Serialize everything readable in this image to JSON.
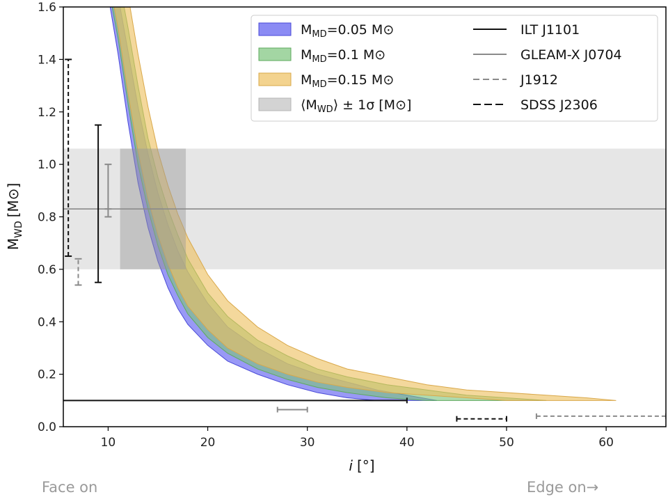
{
  "chart_data": {
    "type": "area",
    "xlabel_italic": "i",
    "xlabel_unit": "[°]",
    "ylabel_main": "M",
    "ylabel_sub": "WD",
    "ylabel_unit_open": "[M",
    "ylabel_unit_sym": "⊙",
    "ylabel_unit_close": "]",
    "xlim": [
      5.5,
      66
    ],
    "ylim": [
      0.0,
      1.6
    ],
    "x_ticks": [
      10,
      20,
      30,
      40,
      50,
      60
    ],
    "x_tick_labels": [
      "10",
      "20",
      "30",
      "40",
      "50",
      "60"
    ],
    "y_ticks": [
      0.0,
      0.2,
      0.4,
      0.6,
      0.8,
      1.0,
      1.2,
      1.4,
      1.6
    ],
    "y_tick_labels": [
      "0.0",
      "0.2",
      "0.4",
      "0.6",
      "0.8",
      "1.0",
      "1.2",
      "1.4",
      "1.6"
    ],
    "caption_left": "Face on",
    "caption_right": "Edge on→",
    "legend_position": "top-right",
    "bands": [
      {
        "label_main": "M",
        "label_sub": "MD",
        "label_value": "=0.05 M",
        "label_sym": "⊙",
        "color": "#5a5af0",
        "edge": "#4a4ad8",
        "lower": [
          [
            10.2,
            1.6
          ],
          [
            11,
            1.42
          ],
          [
            12,
            1.16
          ],
          [
            13,
            0.93
          ],
          [
            14,
            0.76
          ],
          [
            15,
            0.63
          ],
          [
            16,
            0.53
          ],
          [
            17,
            0.45
          ],
          [
            18,
            0.39
          ],
          [
            20,
            0.31
          ],
          [
            22,
            0.25
          ],
          [
            25,
            0.2
          ],
          [
            28,
            0.16
          ],
          [
            31,
            0.13
          ],
          [
            34,
            0.11
          ],
          [
            37,
            0.1
          ],
          [
            40,
            0.1
          ]
        ],
        "upper": [
          [
            11.2,
            1.6
          ],
          [
            12,
            1.43
          ],
          [
            13,
            1.22
          ],
          [
            14,
            1.04
          ],
          [
            15,
            0.89
          ],
          [
            16,
            0.77
          ],
          [
            17,
            0.67
          ],
          [
            18,
            0.59
          ],
          [
            20,
            0.47
          ],
          [
            22,
            0.38
          ],
          [
            25,
            0.3
          ],
          [
            28,
            0.24
          ],
          [
            31,
            0.2
          ],
          [
            34,
            0.17
          ],
          [
            37,
            0.14
          ],
          [
            40,
            0.12
          ],
          [
            43,
            0.1
          ]
        ]
      },
      {
        "label_main": "M",
        "label_sub": "MD",
        "label_value": "=0.1 M",
        "label_sym": "⊙",
        "color": "#7cc47c",
        "edge": "#5eaa5e",
        "lower": [
          [
            10.4,
            1.6
          ],
          [
            11,
            1.48
          ],
          [
            12,
            1.23
          ],
          [
            13,
            1.0
          ],
          [
            14,
            0.83
          ],
          [
            15,
            0.69
          ],
          [
            16,
            0.58
          ],
          [
            17,
            0.5
          ],
          [
            18,
            0.43
          ],
          [
            20,
            0.34
          ],
          [
            22,
            0.28
          ],
          [
            25,
            0.22
          ],
          [
            28,
            0.18
          ],
          [
            31,
            0.15
          ],
          [
            34,
            0.13
          ],
          [
            38,
            0.11
          ],
          [
            42,
            0.1
          ],
          [
            47,
            0.1
          ]
        ],
        "upper": [
          [
            11.6,
            1.6
          ],
          [
            12,
            1.52
          ],
          [
            13,
            1.3
          ],
          [
            14,
            1.1
          ],
          [
            15,
            0.95
          ],
          [
            16,
            0.83
          ],
          [
            17,
            0.73
          ],
          [
            18,
            0.64
          ],
          [
            20,
            0.51
          ],
          [
            22,
            0.42
          ],
          [
            25,
            0.33
          ],
          [
            28,
            0.27
          ],
          [
            31,
            0.22
          ],
          [
            34,
            0.19
          ],
          [
            38,
            0.16
          ],
          [
            42,
            0.14
          ],
          [
            46,
            0.12
          ],
          [
            50,
            0.11
          ],
          [
            54,
            0.1
          ]
        ]
      },
      {
        "label_main": "M",
        "label_sub": "MD",
        "label_value": "=0.15 M",
        "label_sym": "⊙",
        "color": "#eec060",
        "edge": "#d9a84a",
        "lower": [
          [
            10.6,
            1.6
          ],
          [
            11,
            1.52
          ],
          [
            12,
            1.27
          ],
          [
            13,
            1.05
          ],
          [
            14,
            0.87
          ],
          [
            15,
            0.73
          ],
          [
            16,
            0.62
          ],
          [
            17,
            0.53
          ],
          [
            18,
            0.46
          ],
          [
            20,
            0.37
          ],
          [
            22,
            0.3
          ],
          [
            25,
            0.24
          ],
          [
            28,
            0.2
          ],
          [
            31,
            0.17
          ],
          [
            34,
            0.15
          ],
          [
            38,
            0.13
          ],
          [
            42,
            0.12
          ],
          [
            46,
            0.11
          ],
          [
            50,
            0.1
          ],
          [
            54,
            0.1
          ]
        ],
        "upper": [
          [
            12.2,
            1.6
          ],
          [
            13,
            1.42
          ],
          [
            14,
            1.22
          ],
          [
            15,
            1.05
          ],
          [
            16,
            0.92
          ],
          [
            17,
            0.81
          ],
          [
            18,
            0.72
          ],
          [
            20,
            0.58
          ],
          [
            22,
            0.48
          ],
          [
            25,
            0.38
          ],
          [
            28,
            0.31
          ],
          [
            31,
            0.26
          ],
          [
            34,
            0.22
          ],
          [
            38,
            0.19
          ],
          [
            42,
            0.16
          ],
          [
            46,
            0.14
          ],
          [
            50,
            0.13
          ],
          [
            54,
            0.12
          ],
          [
            58,
            0.11
          ],
          [
            61,
            0.1
          ]
        ]
      }
    ],
    "mean_wd_band": {
      "label_open": "⟨M",
      "label_sub": "WD",
      "label_close": "⟩ ± 1σ [M",
      "label_sym": "⊙",
      "label_end": "]",
      "y_low": 0.6,
      "y_high": 1.06,
      "mean": 0.83,
      "color": "#c8c8c8"
    },
    "inclination_box": {
      "x_low": 11.2,
      "x_high": 17.8,
      "y_low": 0.6,
      "y_high": 1.06,
      "color": "#9a9a9a"
    },
    "sources": [
      {
        "name": "ILT J1101",
        "style": "solid",
        "color": "#111111",
        "mass_x": 9,
        "mass_range": [
          0.55,
          1.15
        ],
        "incl_y": 0.1,
        "incl_range": [
          5.5,
          40
        ]
      },
      {
        "name": "GLEAM-X J0704",
        "style": "solid",
        "color": "#8a8a8a",
        "mass_x": 10,
        "mass_range": [
          0.8,
          1.0
        ],
        "mass_mid": 0.83,
        "incl_y": 0.065,
        "incl_range": [
          27,
          30
        ]
      },
      {
        "name": "J1912",
        "style": "dashed",
        "color": "#8a8a8a",
        "mass_x": 7,
        "mass_range": [
          0.54,
          0.64
        ],
        "incl_y": 0.04,
        "incl_range": [
          53,
          66
        ]
      },
      {
        "name": "SDSS J2306",
        "style": "dashed",
        "color": "#111111",
        "mass_x": 6,
        "mass_range": [
          0.65,
          1.4
        ],
        "incl_y": 0.03,
        "incl_range": [
          45,
          50
        ]
      }
    ]
  }
}
